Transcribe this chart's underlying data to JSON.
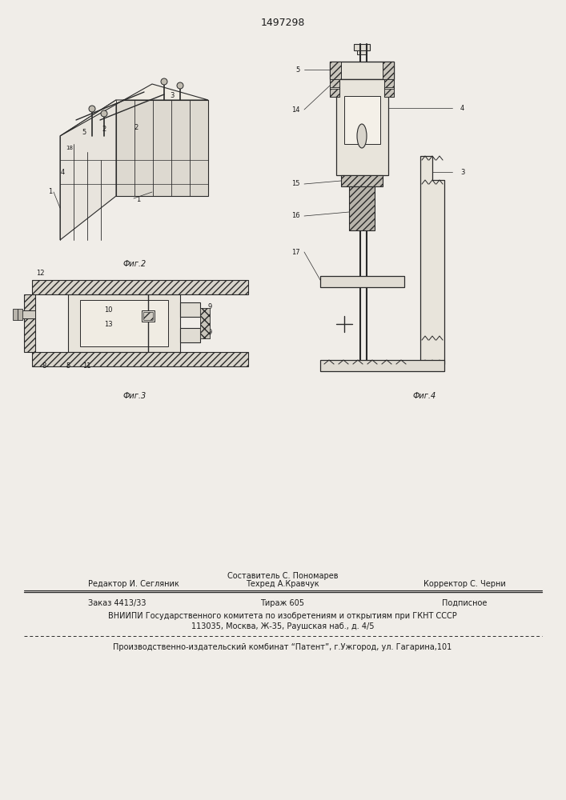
{
  "patent_number": "1497298",
  "background_color": "#f0ede8",
  "text_color": "#1a1a1a",
  "line_color": "#2a2a2a",
  "hatch_color": "#2a2a2a",
  "footer": {
    "composer_label": "Составитель С. Пономарев",
    "editor_label": "Редактор И. Сегляник",
    "techred_label": "Техред А.Кравчук",
    "corrector_label": "Корректор С. Черни",
    "order_label": "Заказ 4413/33",
    "tirazh_label": "Тираж 605",
    "podpisnoe_label": "Подписное",
    "vniiipi_line1": "ВНИИПИ Государственного комитета по изобретениям и открытиям при ГКНТ СССР",
    "vniiipi_line2": "113035, Москва, Ж-35, Раушская наб., д. 4/5",
    "proizv_line": "Производственно-издательский комбинат “Патент”, г.Ужгород, ул. Гагарина,101"
  },
  "fig2_caption": "Фиг.2",
  "fig3_caption": "Фиг.3",
  "fig4_caption": "Фиг.4"
}
